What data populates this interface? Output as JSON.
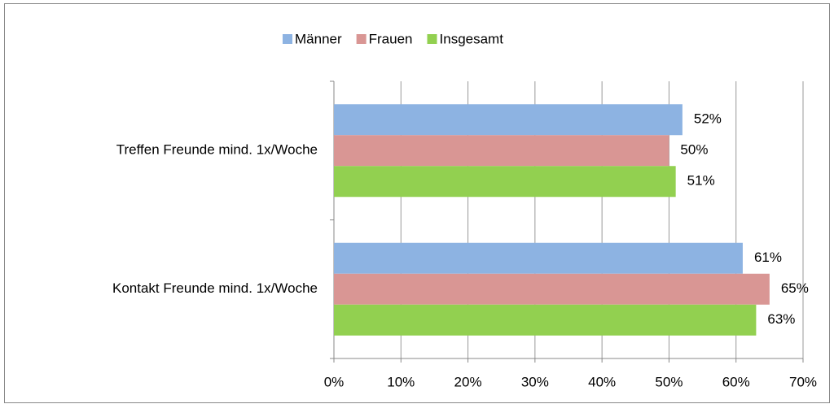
{
  "chart_data": {
    "type": "bar",
    "orientation": "horizontal",
    "categories": [
      "Treffen Freunde mind. 1x/Woche",
      "Kontakt Freunde mind. 1x/Woche"
    ],
    "series": [
      {
        "name": "Männer",
        "color": "#8db3e2",
        "values": [
          52,
          61
        ],
        "value_labels": [
          "52%",
          "61%"
        ]
      },
      {
        "name": "Frauen",
        "color": "#d99694",
        "values": [
          50,
          65
        ],
        "value_labels": [
          "50%",
          "65%"
        ]
      },
      {
        "name": "Insgesamt",
        "color": "#92d050",
        "values": [
          51,
          63
        ],
        "value_labels": [
          "51%",
          "63%"
        ]
      }
    ],
    "xlim": [
      0,
      70
    ],
    "xticks": [
      {
        "value": 0,
        "label": "0%"
      },
      {
        "value": 10,
        "label": "10%"
      },
      {
        "value": 20,
        "label": "20%"
      },
      {
        "value": 30,
        "label": "30%"
      },
      {
        "value": 40,
        "label": "40%"
      },
      {
        "value": 50,
        "label": "50%"
      },
      {
        "value": 60,
        "label": "60%"
      },
      {
        "value": 70,
        "label": "70%"
      }
    ],
    "grid": true,
    "legend": "top"
  }
}
